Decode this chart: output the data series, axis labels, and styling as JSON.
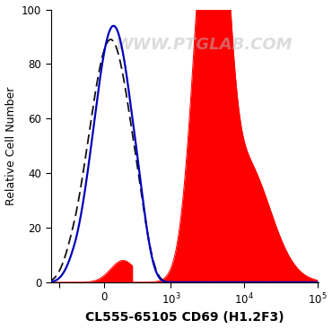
{
  "xlabel": "CL555-65105 CD69 (H1.2F3)",
  "ylabel": "Relative Cell Number",
  "ylim": [
    0,
    100
  ],
  "watermark": "WWW.PTGLAB.COM",
  "background_color": "#ffffff",
  "plot_bg_color": "#ffffff",
  "blue_color": "#0000bb",
  "red_color": "#ff0000",
  "dashed_color": "#111111",
  "xlabel_fontsize": 10,
  "ylabel_fontsize": 9,
  "tick_fontsize": 8.5,
  "watermark_color": "#bbbbbb",
  "watermark_fontsize": 13,
  "watermark_alpha": 0.5
}
